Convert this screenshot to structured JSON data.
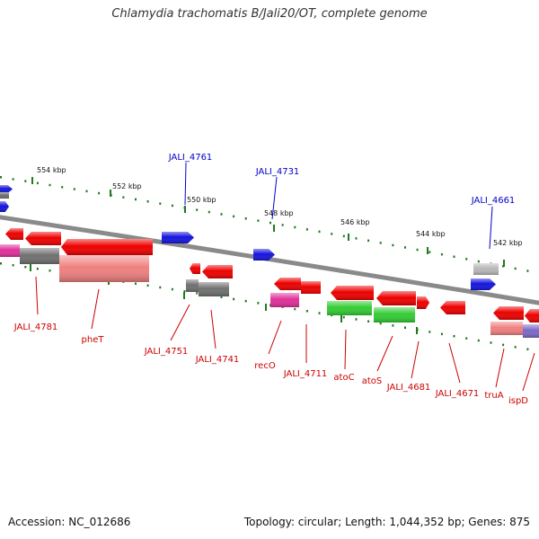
{
  "title": "Chlamydia trachomatis B/Jali20/OT, complete genome",
  "footer": {
    "accession": "Accession: NC_012686",
    "summary": "Topology: circular; Length: 1,044,352 bp; Genes: 875"
  },
  "colors": {
    "backbone": "#8a8a8a",
    "scale_tick": "#1e7a1e",
    "label_blue": "#0000cc",
    "label_red": "#cc0000",
    "red": "#ee0000",
    "blue": "#1515dd",
    "gray": "#707070",
    "silver": "#b8b8b8",
    "pink": "#f08080",
    "magenta": "#e0309a",
    "green": "#33cc33",
    "purple": "#7b68c8"
  },
  "scale_labels": [
    "554 kbp",
    "552 kbp",
    "550 kbp",
    "548 kbp",
    "546 kbp",
    "544 kbp",
    "542 kbp"
  ],
  "gene_labels_top": [
    "JALI_4761",
    "JALI_4731",
    "JALI_4661"
  ],
  "gene_labels_bottom": [
    "JALI_4781",
    "pheT",
    "JALI_4751",
    "JALI_4741",
    "recO",
    "JALI_4711",
    "atoC",
    "atoS",
    "JALI_4681",
    "JALI_4671",
    "truA",
    "ispD"
  ]
}
